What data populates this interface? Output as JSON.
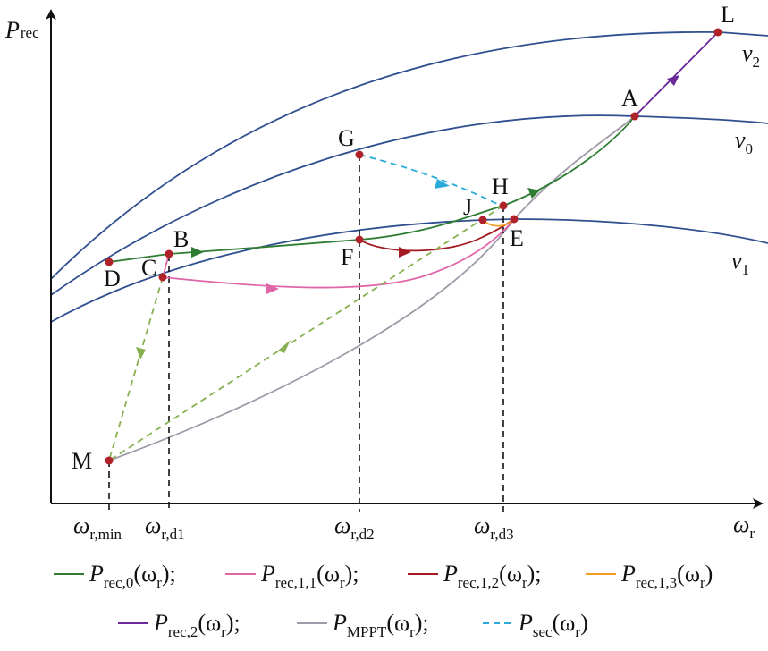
{
  "axes": {
    "y_symbol": "P",
    "y_sub": "rec",
    "x_symbol": "ω",
    "x_sub": "r"
  },
  "curve_labels": [
    {
      "id": "v2",
      "symbol": "v",
      "sub": "2"
    },
    {
      "id": "v0",
      "symbol": "v",
      "sub": "0"
    },
    {
      "id": "v1",
      "symbol": "v",
      "sub": "1"
    }
  ],
  "points": [
    "L",
    "A",
    "G",
    "H",
    "J",
    "E",
    "B",
    "D",
    "C",
    "F",
    "M"
  ],
  "x_ticks": [
    {
      "id": "rmin",
      "symbol": "ω",
      "sub": "r,min"
    },
    {
      "id": "rd1",
      "symbol": "ω",
      "sub": "r,d1"
    },
    {
      "id": "rd2",
      "symbol": "ω",
      "sub": "r,d2"
    },
    {
      "id": "rd3",
      "symbol": "ω",
      "sub": "r,d3"
    }
  ],
  "legend": [
    {
      "id": "prec0",
      "P": "P",
      "sub": "rec,0",
      "arg": "(ω",
      "arg_sub": "r",
      "close": ");",
      "color": "#2e7d32",
      "dash": false
    },
    {
      "id": "prec11",
      "P": "P",
      "sub": "rec,1,1",
      "arg": "(ω",
      "arg_sub": "r",
      "close": ");",
      "color": "#e066a8",
      "dash": false
    },
    {
      "id": "prec12",
      "P": "P",
      "sub": "rec,1,2",
      "arg": "(ω",
      "arg_sub": "r",
      "close": ");",
      "color": "#a31a22",
      "dash": false
    },
    {
      "id": "prec13",
      "P": "P",
      "sub": "rec,1,3",
      "arg": "(ω",
      "arg_sub": "r",
      "close": ")",
      "color": "#f0a020",
      "dash": false
    },
    {
      "id": "prec2",
      "P": "P",
      "sub": "rec,2",
      "arg": "(ω",
      "arg_sub": "r",
      "close": ");",
      "color": "#6a2a9a",
      "dash": false
    },
    {
      "id": "pmppt",
      "P": "P",
      "sub": "MPPT",
      "arg": "(ω",
      "arg_sub": "r",
      "close": ");",
      "color": "#a09aa8",
      "dash": false
    },
    {
      "id": "psec",
      "P": "P",
      "sub": "sec",
      "arg": "(ω",
      "arg_sub": "r",
      "close": ")",
      "color": "#2aaad8",
      "dash": true
    }
  ],
  "colors": {
    "wind_curve": "#2f4f8f",
    "point": "#b0222a",
    "guide": "#111111",
    "m_dashed": "#88b050"
  }
}
